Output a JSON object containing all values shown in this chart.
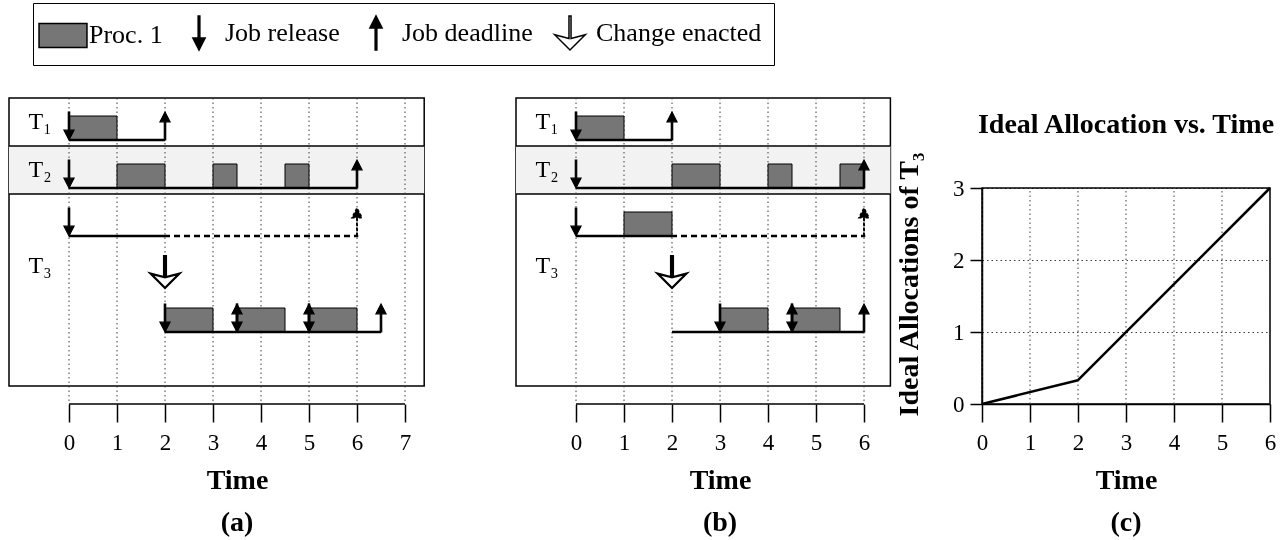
{
  "chart_data": [
    {
      "type": "bar",
      "orientation": "horizontal",
      "categories": [
        "T₁",
        "T₂",
        null,
        "T₃",
        null
      ],
      "xlabel": "Time",
      "xlim": [
        -1.25,
        7.4
      ],
      "xticks": [
        0,
        1,
        2,
        3,
        4,
        5,
        6,
        7
      ],
      "grid": "x",
      "legend": "top right",
      "annotations": [
        "(a)"
      ],
      "series": [
        {
          "type": "bar",
          "color": "#f2f2f2",
          "base": [
            null,
            -1.25,
            null,
            null,
            null
          ],
          "values": [
            null,
            8.65,
            null,
            null,
            null
          ]
        },
        {
          "name": "Proc. 1",
          "type": "bar",
          "color": "#767676",
          "base": [
            0,
            1,
            null,
            null,
            2
          ],
          "values": [
            1,
            1,
            null,
            null,
            1
          ]
        },
        {
          "type": "bar",
          "color": "#767676",
          "base": [
            null,
            3,
            null,
            null,
            3.5
          ],
          "values": [
            null,
            0.5,
            null,
            null,
            1
          ]
        },
        {
          "type": "bar",
          "color": "#767676",
          "base": [
            null,
            4.5,
            null,
            null,
            5
          ],
          "values": [
            null,
            0.5,
            null,
            null,
            1
          ]
        },
        {
          "type": "bar",
          "color": "#000000",
          "line_style": "solid",
          "base": [
            0,
            0,
            0,
            null,
            2
          ],
          "values": [
            2,
            6,
            2,
            null,
            4.5
          ]
        },
        {
          "type": "bar",
          "color": "#000000",
          "line_style": "dashed",
          "base": [
            null,
            null,
            2,
            null,
            null
          ],
          "values": [
            null,
            null,
            4,
            null,
            null
          ]
        },
        {
          "name": "Job release",
          "type": "scatter",
          "color": "#000000",
          "values": [
            0,
            0,
            0,
            null,
            2
          ]
        },
        {
          "type": "scatter",
          "color": "#000000",
          "values": [
            null,
            null,
            null,
            null,
            3.5
          ]
        },
        {
          "type": "scatter",
          "color": "#000000",
          "values": [
            null,
            null,
            null,
            null,
            5
          ]
        },
        {
          "name": "Job deadline",
          "type": "scatter",
          "color": "#000000",
          "values": [
            2,
            6,
            null,
            null,
            3.5
          ]
        },
        {
          "type": "scatter",
          "color": "#000000",
          "values": [
            null,
            null,
            null,
            null,
            5
          ]
        },
        {
          "type": "scatter",
          "color": "#000000",
          "values": [
            null,
            null,
            null,
            null,
            6.5
          ]
        },
        {
          "type": "scatter",
          "color": "#000000",
          "line_style": "dashed",
          "values": [
            null,
            null,
            6,
            null,
            null
          ]
        },
        {
          "name": "Change enacted",
          "type": "scatter",
          "color": "#ffffff",
          "values": [
            null,
            null,
            null,
            2,
            null
          ]
        }
      ]
    },
    {
      "type": "bar",
      "orientation": "horizontal",
      "categories": [
        "T₁",
        "T₂",
        null,
        "T₃",
        null
      ],
      "xlabel": "Time",
      "xlim": [
        -1.25,
        6.55
      ],
      "xticks": [
        0,
        1,
        2,
        3,
        4,
        5,
        6
      ],
      "grid": "x",
      "annotations": [
        "(b)"
      ],
      "series": [
        {
          "type": "bar",
          "color": "#f2f2f2",
          "base": [
            null,
            -1.25,
            null,
            null,
            null
          ],
          "values": [
            null,
            7.8,
            null,
            null,
            null
          ]
        },
        {
          "type": "bar",
          "color": "#767676",
          "base": [
            0,
            2,
            1,
            null,
            3
          ],
          "values": [
            1,
            1,
            1,
            null,
            1
          ]
        },
        {
          "type": "bar",
          "color": "#767676",
          "base": [
            null,
            4,
            null,
            null,
            4.5
          ],
          "values": [
            null,
            0.5,
            null,
            null,
            1
          ]
        },
        {
          "type": "bar",
          "color": "#767676",
          "base": [
            null,
            5.5,
            null,
            null,
            null
          ],
          "values": [
            null,
            0.5,
            null,
            null,
            null
          ]
        },
        {
          "type": "bar",
          "color": "#000000",
          "line_style": "solid",
          "base": [
            0,
            0,
            0,
            null,
            2
          ],
          "values": [
            2,
            6,
            2,
            null,
            4
          ]
        },
        {
          "type": "bar",
          "color": "#000000",
          "line_style": "dashed",
          "base": [
            null,
            null,
            2,
            null,
            null
          ],
          "values": [
            null,
            null,
            4,
            null,
            null
          ]
        },
        {
          "type": "scatter",
          "color": "#000000",
          "values": [
            0,
            0,
            0,
            null,
            3
          ]
        },
        {
          "type": "scatter",
          "color": "#000000",
          "values": [
            null,
            null,
            null,
            null,
            4.5
          ]
        },
        {
          "type": "scatter",
          "color": "#000000",
          "values": [
            2,
            6,
            null,
            null,
            4.5
          ]
        },
        {
          "type": "scatter",
          "color": "#000000",
          "values": [
            null,
            null,
            null,
            null,
            6
          ]
        },
        {
          "type": "scatter",
          "color": "#000000",
          "line_style": "dashed",
          "values": [
            null,
            null,
            6,
            null,
            null
          ]
        },
        {
          "type": "scatter",
          "color": "#ffffff",
          "values": [
            null,
            null,
            null,
            2,
            null
          ]
        }
      ]
    },
    {
      "type": "line",
      "title": "Ideal Allocation vs. Time",
      "xlabel": "Time",
      "ylabel": "Ideal Allocations of T₃",
      "x": [
        0,
        2,
        6
      ],
      "series": [
        {
          "color": "#000000",
          "values": [
            0,
            0.33,
            3
          ]
        }
      ],
      "xlim": [
        0,
        6
      ],
      "ylim": [
        0,
        3
      ],
      "xticks": [
        0,
        1,
        2,
        3,
        4,
        5,
        6
      ],
      "yticks": [
        0,
        1,
        2,
        3
      ],
      "grid": true,
      "annotations": [
        "(c)"
      ]
    }
  ]
}
